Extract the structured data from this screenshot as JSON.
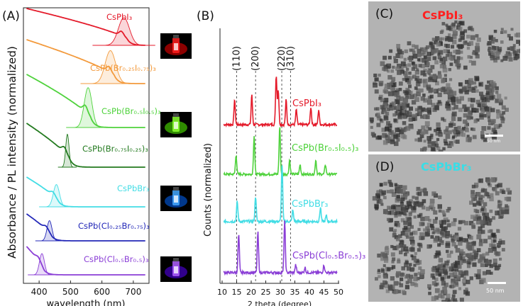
{
  "panel_a": {
    "label": "(A)",
    "ylabel": "Absorbance / PL intensity (normalized)",
    "xlabel": "wavelength (nm)",
    "xticks": [
      "400",
      "500",
      "600",
      "700"
    ],
    "samples": [
      {
        "name": "CsPbI₃",
        "color": "#e41a2a",
        "edge_nm": 680,
        "pl_peak_nm": 670,
        "pl_fwhm_nm": 40
      },
      {
        "name": "CsPb(Br₀.₂₅I₀.₇₅)₃",
        "color": "#f39a3c",
        "edge_nm": 640,
        "pl_peak_nm": 627,
        "pl_fwhm_nm": 38
      },
      {
        "name": "CsPb(Br₀.₅I₀.₅)₃",
        "color": "#4fd23c",
        "edge_nm": 565,
        "pl_peak_nm": 556,
        "pl_fwhm_nm": 28
      },
      {
        "name": "CsPb(Br₀.₇₅I₀.₂₅)₃",
        "color": "#237a1f",
        "edge_nm": 498,
        "pl_peak_nm": 490,
        "pl_fwhm_nm": 12
      },
      {
        "name": "CsPbBr₃",
        "color": "#43dde5",
        "edge_nm": 462,
        "pl_peak_nm": 455,
        "pl_fwhm_nm": 22
      },
      {
        "name": "CsPb(Cl₀.₂₅Br₀.₇₅)₃",
        "color": "#2328b8",
        "edge_nm": 440,
        "pl_peak_nm": 433,
        "pl_fwhm_nm": 18
      },
      {
        "name": "CsPb(Cl₀.₅Br₀.₅)₃",
        "color": "#8b3fd6",
        "edge_nm": 415,
        "pl_peak_nm": 409,
        "pl_fwhm_nm": 18
      }
    ],
    "vials": [
      {
        "color": "#ff2020",
        "glow": "#ff0000"
      },
      {
        "color": "#8cff30",
        "glow": "#55ff00"
      },
      {
        "color": "#44a8ff",
        "glow": "#0066ff"
      },
      {
        "color": "#b060ff",
        "glow": "#5a00ff"
      }
    ]
  },
  "panel_b": {
    "label": "(B)",
    "ylabel": "Counts (normalized)",
    "xlabel": "2 theta (degree)",
    "xticks": [
      "10",
      "15",
      "20",
      "25",
      "30",
      "35",
      "40",
      "45",
      "50"
    ],
    "reflections": [
      {
        "hkl": "(110)",
        "two_theta": 15
      },
      {
        "hkl": "(200)",
        "two_theta": 21.5
      },
      {
        "hkl": "(220)",
        "two_theta": 30.5
      },
      {
        "hkl": "(310)",
        "two_theta": 33.5
      }
    ],
    "patterns": [
      {
        "name": "CsPbI₃",
        "color": "#e41a2a",
        "peaks": [
          [
            14.3,
            0.5
          ],
          [
            20.2,
            0.6
          ],
          [
            28.6,
            1.0
          ],
          [
            29.3,
            0.7
          ],
          [
            32.0,
            0.5
          ],
          [
            35.5,
            0.3
          ],
          [
            40.5,
            0.35
          ],
          [
            43.2,
            0.3
          ]
        ]
      },
      {
        "name": "CsPb(Br₀.₅I₀.₅)₃",
        "color": "#4fd23c",
        "peaks": [
          [
            14.8,
            0.4
          ],
          [
            21.0,
            0.8
          ],
          [
            29.8,
            1.0
          ],
          [
            33.2,
            0.3
          ],
          [
            36.8,
            0.2
          ],
          [
            42.2,
            0.3
          ],
          [
            45.5,
            0.2
          ]
        ]
      },
      {
        "name": "CsPbBr₃",
        "color": "#43dde5",
        "peaks": [
          [
            15.2,
            0.35
          ],
          [
            21.5,
            0.45
          ],
          [
            30.6,
            1.0
          ],
          [
            34.3,
            0.2
          ],
          [
            43.8,
            0.25
          ],
          [
            45.8,
            0.1
          ]
        ]
      },
      {
        "name": "CsPb(Cl₀.₅Br₀.₅)₃",
        "color": "#8b3fd6",
        "peaks": [
          [
            15.7,
            0.75
          ],
          [
            22.3,
            0.8
          ],
          [
            31.5,
            1.0
          ],
          [
            35.3,
            0.15
          ],
          [
            38.5,
            0.1
          ],
          [
            45.0,
            0.15
          ]
        ]
      }
    ]
  },
  "panel_c": {
    "label": "(C)",
    "title": "CsPbI₃",
    "title_color": "#ff2020",
    "scale": "50 nm"
  },
  "panel_d": {
    "label": "(D)",
    "title": "CsPbBr₃",
    "title_color": "#3adde6",
    "scale": "50 nm"
  }
}
